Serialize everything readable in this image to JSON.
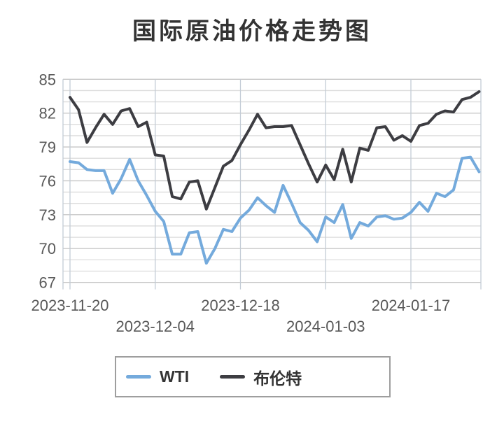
{
  "title": "国际原油价格走势图",
  "legend": {
    "items": [
      {
        "id": "wti",
        "label": "WTI",
        "color": "#74aadc"
      },
      {
        "id": "brent",
        "label": "布伦特",
        "color": "#3d3d42"
      }
    ]
  },
  "colors": {
    "background": "#ffffff",
    "grid_minor": "#dcdcdc",
    "grid_major": "#c6c6c6",
    "grid_vertical": "#c3ccd6",
    "axis_text": "#595959",
    "title_text": "#333333",
    "legend_border": "#9e9e9e"
  },
  "chart_data": {
    "type": "line",
    "title": "国际原油价格走势图",
    "xlabel": "",
    "ylabel": "",
    "ylim": [
      67,
      85
    ],
    "y_ticks": [
      67,
      70,
      73,
      76,
      79,
      82,
      85
    ],
    "y_minor_grid_step": 1,
    "grid": true,
    "legend_position": "bottom",
    "x_tick_labels": [
      "2023-11-20",
      "2023-12-04",
      "2023-12-18",
      "2024-01-03",
      "2024-01-17"
    ],
    "x_tick_indices": [
      0,
      10,
      20,
      30,
      40
    ],
    "series": [
      {
        "name": "WTI",
        "color": "#74aadc",
        "values": [
          77.7,
          77.6,
          77.0,
          76.9,
          76.9,
          74.9,
          76.2,
          77.9,
          76.0,
          74.7,
          73.3,
          72.4,
          69.5,
          69.5,
          71.4,
          71.5,
          68.7,
          70.0,
          71.7,
          71.5,
          72.7,
          73.4,
          74.5,
          73.8,
          73.2,
          75.6,
          74.0,
          72.3,
          71.6,
          70.6,
          72.8,
          72.3,
          73.9,
          70.9,
          72.3,
          72.0,
          72.8,
          72.9,
          72.6,
          72.7,
          73.2,
          74.1,
          73.3,
          74.9,
          74.6,
          75.2,
          78.0,
          78.1,
          76.8
        ]
      },
      {
        "name": "布伦特",
        "color": "#3d3d42",
        "values": [
          83.4,
          82.3,
          79.4,
          80.7,
          81.9,
          81.0,
          82.2,
          82.4,
          80.8,
          81.2,
          78.3,
          78.2,
          74.6,
          74.4,
          75.9,
          76.0,
          73.5,
          75.4,
          77.3,
          77.8,
          79.2,
          80.5,
          81.9,
          80.7,
          80.8,
          80.8,
          80.9,
          79.2,
          77.5,
          75.9,
          77.4,
          76.1,
          78.8,
          75.9,
          78.9,
          78.7,
          80.7,
          80.8,
          79.6,
          80.0,
          79.5,
          80.9,
          81.1,
          81.9,
          82.2,
          82.1,
          83.2,
          83.4,
          83.9
        ]
      }
    ]
  }
}
